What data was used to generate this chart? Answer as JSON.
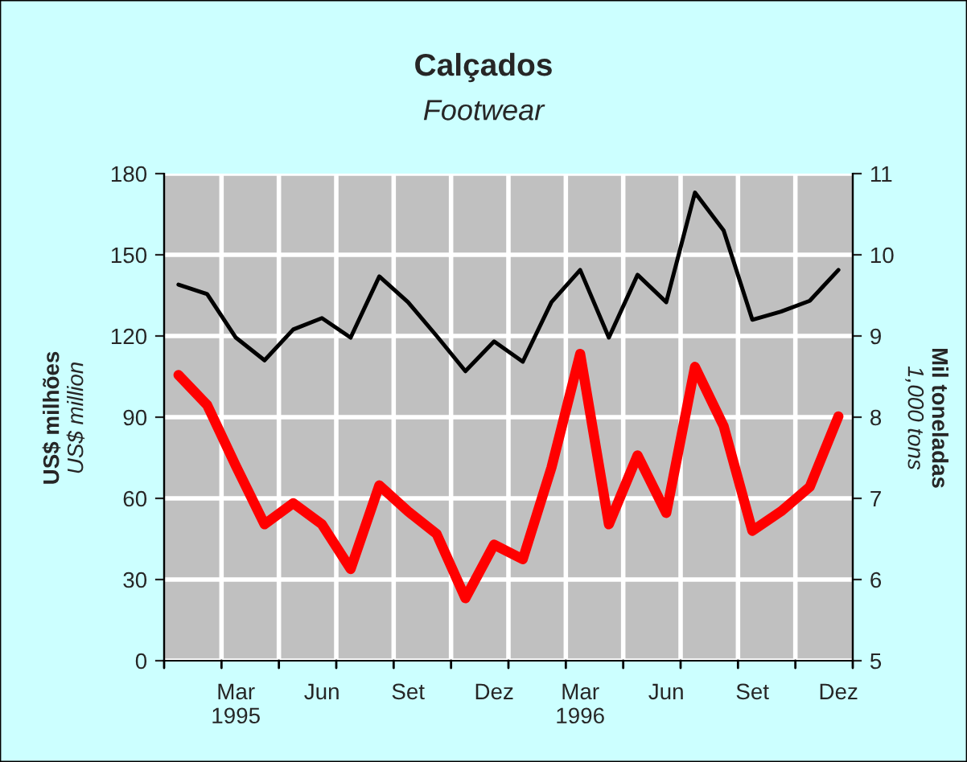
{
  "chart_data": {
    "type": "line",
    "title": "Calçados",
    "subtitle": "Footwear",
    "ylabel": "US$ milhões\nUS$ million",
    "y2label": "Mil toneladas\n1,000 tons",
    "categories": [
      null,
      null,
      "Mar\n1995",
      null,
      null,
      "Jun",
      null,
      null,
      "Set",
      null,
      null,
      "Dez",
      null,
      null,
      "Mar\n1996",
      null,
      null,
      "Jun",
      null,
      null,
      "Set",
      null,
      null,
      "Dez"
    ],
    "series": [
      {
        "color": "#000000",
        "values": [
          139,
          135.5,
          119.4,
          111,
          122.4,
          126.6,
          119.4,
          142,
          132.5,
          120,
          107,
          118,
          110.5,
          132.5,
          144.4,
          119.4,
          142.6,
          132.5,
          173,
          159,
          126,
          129,
          133,
          144.4
        ]
      },
      {
        "color": "#ff0000",
        "axis": "y2",
        "values": [
          8.52,
          8.15,
          7.4,
          6.68,
          6.94,
          6.68,
          6.13,
          7.16,
          6.84,
          6.56,
          5.77,
          6.43,
          6.25,
          7.38,
          8.78,
          6.68,
          7.53,
          6.82,
          8.62,
          7.89,
          6.6,
          6.84,
          7.14,
          8.01
        ]
      }
    ],
    "ylim": [
      0,
      180
    ],
    "yticks": [
      0,
      30,
      60,
      90,
      120,
      150,
      180
    ],
    "y2lim": [
      5,
      11
    ],
    "y2ticks": [
      5,
      6,
      7,
      8,
      9,
      10,
      11
    ],
    "grid": true,
    "legend": false
  }
}
